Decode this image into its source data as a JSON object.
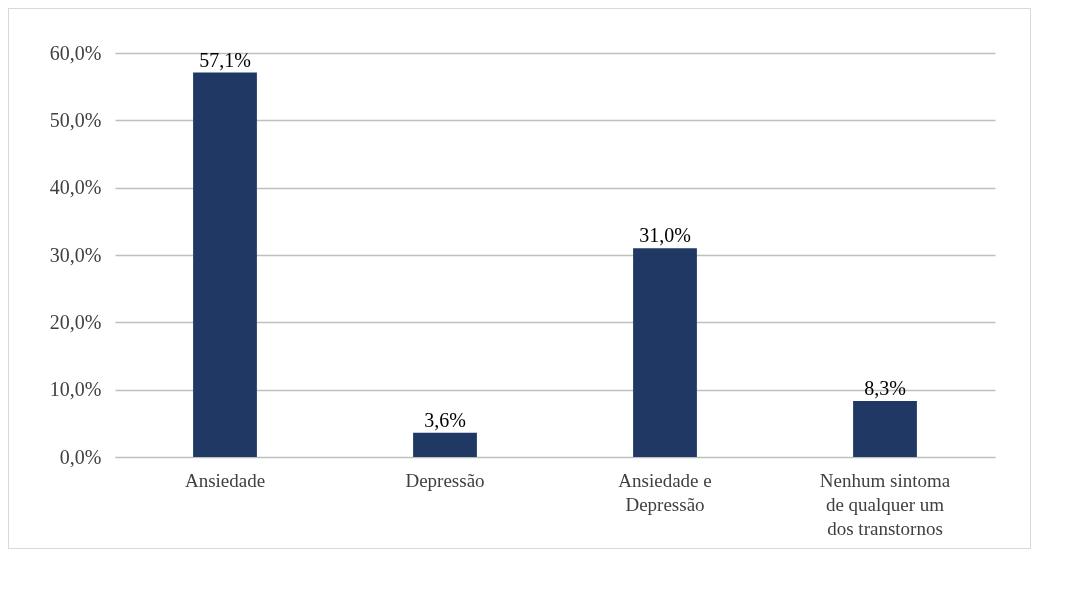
{
  "chart_data": {
    "type": "bar",
    "categories": [
      "Ansiedade",
      "Depressão",
      "Ansiedade e Depressão",
      "Nenhum sintoma de qualquer um dos transtornos"
    ],
    "values": [
      57.1,
      3.6,
      31.0,
      8.3
    ],
    "color": "#1f3864",
    "value_labels": [
      "57,1%",
      "3,6%",
      "31,0%",
      "8,3%"
    ],
    "ylim": [
      0,
      60
    ],
    "yticks": [
      {
        "value": 0,
        "label": "0,0%"
      },
      {
        "value": 10,
        "label": "10,0%"
      },
      {
        "value": 20,
        "label": "20,0%"
      },
      {
        "value": 30,
        "label": "30,0%"
      },
      {
        "value": 40,
        "label": "40,0%"
      },
      {
        "value": 50,
        "label": "50,0%"
      },
      {
        "value": 60,
        "label": "60,0%"
      }
    ],
    "grid": "y"
  }
}
